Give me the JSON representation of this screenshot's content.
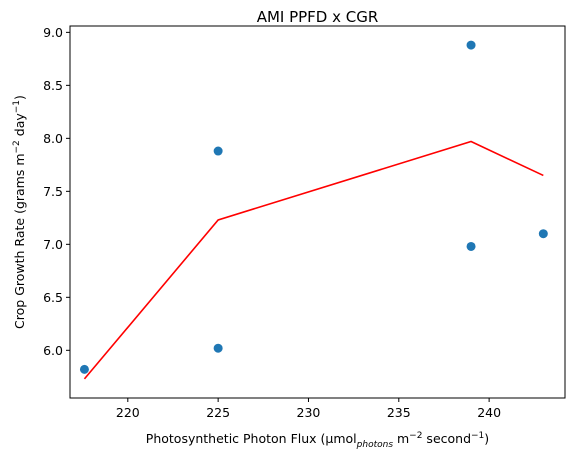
{
  "chart_data": {
    "type": "scatter",
    "title": "AMI PPFD x CGR",
    "xlabel": {
      "main": "Photosynthetic Photon Flux (μmol",
      "sub": "photons",
      "mid": " m",
      "sup1": "−2",
      "mid2": " second",
      "sup2": "−1",
      "end": ")"
    },
    "ylabel": {
      "main": "Crop Growth Rate (grams m",
      "sup1": "−2",
      "mid": " day",
      "sup2": "−1",
      "end": ")"
    },
    "xlim": [
      216.8,
      244.2
    ],
    "ylim": [
      5.55,
      9.06
    ],
    "xticks": [
      220,
      225,
      230,
      235,
      240
    ],
    "yticks": [
      6.0,
      6.5,
      7.0,
      7.5,
      8.0,
      8.5,
      9.0
    ],
    "ytick_labels": [
      "6.0",
      "6.5",
      "7.0",
      "7.5",
      "8.0",
      "8.5",
      "9.0"
    ],
    "series": [
      {
        "kind": "scatter",
        "color": "#1f77b4",
        "x": [
          217.6,
          225.0,
          225.0,
          239.0,
          239.0,
          243.0
        ],
        "y": [
          5.82,
          7.88,
          6.02,
          8.88,
          6.98,
          7.1
        ]
      },
      {
        "kind": "line",
        "color": "#ff0000",
        "x": [
          217.6,
          225.0,
          239.0,
          243.0
        ],
        "y": [
          5.73,
          7.23,
          7.97,
          7.65
        ]
      }
    ]
  }
}
